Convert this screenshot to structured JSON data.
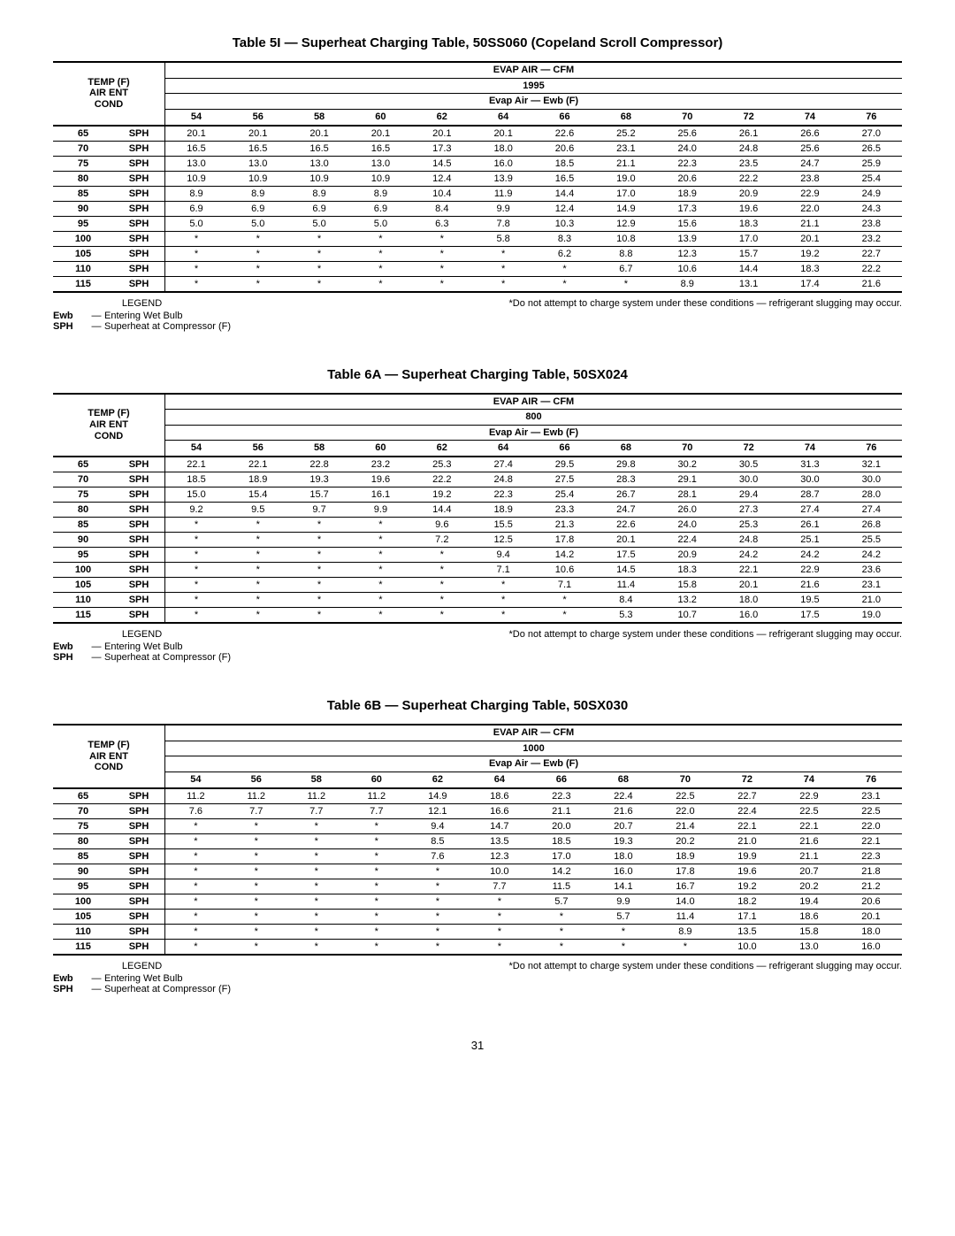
{
  "pageNumber": "31",
  "legend": {
    "title": "LEGEND",
    "items": [
      {
        "key": "Ewb",
        "desc": "Entering Wet Bulb"
      },
      {
        "key": "SPH",
        "desc": "Superheat at Compressor (F)"
      }
    ],
    "footnote": "*Do not attempt to charge system under these conditions — refrigerant slugging may occur."
  },
  "rowHeaderLines": [
    "TEMP (F)",
    "AIR ENT",
    "COND"
  ],
  "topHeader1": "EVAP AIR — CFM",
  "topHeader3": "Evap Air — Ewb (F)",
  "ewbCols": [
    "54",
    "56",
    "58",
    "60",
    "62",
    "64",
    "66",
    "68",
    "70",
    "72",
    "74",
    "76"
  ],
  "tables": [
    {
      "title": "Table 5I — Superheat Charging Table, 50SS060 (Copeland Scroll Compressor)",
      "cfm": "1995",
      "temps": [
        "65",
        "70",
        "75",
        "80",
        "85",
        "90",
        "95",
        "100",
        "105",
        "110",
        "115"
      ],
      "rows": [
        [
          "20.1",
          "20.1",
          "20.1",
          "20.1",
          "20.1",
          "20.1",
          "22.6",
          "25.2",
          "25.6",
          "26.1",
          "26.6",
          "27.0"
        ],
        [
          "16.5",
          "16.5",
          "16.5",
          "16.5",
          "17.3",
          "18.0",
          "20.6",
          "23.1",
          "24.0",
          "24.8",
          "25.6",
          "26.5"
        ],
        [
          "13.0",
          "13.0",
          "13.0",
          "13.0",
          "14.5",
          "16.0",
          "18.5",
          "21.1",
          "22.3",
          "23.5",
          "24.7",
          "25.9"
        ],
        [
          "10.9",
          "10.9",
          "10.9",
          "10.9",
          "12.4",
          "13.9",
          "16.5",
          "19.0",
          "20.6",
          "22.2",
          "23.8",
          "25.4"
        ],
        [
          "8.9",
          "8.9",
          "8.9",
          "8.9",
          "10.4",
          "11.9",
          "14.4",
          "17.0",
          "18.9",
          "20.9",
          "22.9",
          "24.9"
        ],
        [
          "6.9",
          "6.9",
          "6.9",
          "6.9",
          "8.4",
          "9.9",
          "12.4",
          "14.9",
          "17.3",
          "19.6",
          "22.0",
          "24.3"
        ],
        [
          "5.0",
          "5.0",
          "5.0",
          "5.0",
          "6.3",
          "7.8",
          "10.3",
          "12.9",
          "15.6",
          "18.3",
          "21.1",
          "23.8"
        ],
        [
          "*",
          "*",
          "*",
          "*",
          "*",
          "5.8",
          "8.3",
          "10.8",
          "13.9",
          "17.0",
          "20.1",
          "23.2"
        ],
        [
          "*",
          "*",
          "*",
          "*",
          "*",
          "*",
          "6.2",
          "8.8",
          "12.3",
          "15.7",
          "19.2",
          "22.7"
        ],
        [
          "*",
          "*",
          "*",
          "*",
          "*",
          "*",
          "*",
          "6.7",
          "10.6",
          "14.4",
          "18.3",
          "22.2"
        ],
        [
          "*",
          "*",
          "*",
          "*",
          "*",
          "*",
          "*",
          "*",
          "8.9",
          "13.1",
          "17.4",
          "21.6"
        ]
      ]
    },
    {
      "title": "Table 6A — Superheat Charging Table, 50SX024",
      "cfm": "800",
      "temps": [
        "65",
        "70",
        "75",
        "80",
        "85",
        "90",
        "95",
        "100",
        "105",
        "110",
        "115"
      ],
      "rows": [
        [
          "22.1",
          "22.1",
          "22.8",
          "23.2",
          "25.3",
          "27.4",
          "29.5",
          "29.8",
          "30.2",
          "30.5",
          "31.3",
          "32.1"
        ],
        [
          "18.5",
          "18.9",
          "19.3",
          "19.6",
          "22.2",
          "24.8",
          "27.5",
          "28.3",
          "29.1",
          "30.0",
          "30.0",
          "30.0"
        ],
        [
          "15.0",
          "15.4",
          "15.7",
          "16.1",
          "19.2",
          "22.3",
          "25.4",
          "26.7",
          "28.1",
          "29.4",
          "28.7",
          "28.0"
        ],
        [
          "9.2",
          "9.5",
          "9.7",
          "9.9",
          "14.4",
          "18.9",
          "23.3",
          "24.7",
          "26.0",
          "27.3",
          "27.4",
          "27.4"
        ],
        [
          "*",
          "*",
          "*",
          "*",
          "9.6",
          "15.5",
          "21.3",
          "22.6",
          "24.0",
          "25.3",
          "26.1",
          "26.8"
        ],
        [
          "*",
          "*",
          "*",
          "*",
          "7.2",
          "12.5",
          "17.8",
          "20.1",
          "22.4",
          "24.8",
          "25.1",
          "25.5"
        ],
        [
          "*",
          "*",
          "*",
          "*",
          "*",
          "9.4",
          "14.2",
          "17.5",
          "20.9",
          "24.2",
          "24.2",
          "24.2"
        ],
        [
          "*",
          "*",
          "*",
          "*",
          "*",
          "7.1",
          "10.6",
          "14.5",
          "18.3",
          "22.1",
          "22.9",
          "23.6"
        ],
        [
          "*",
          "*",
          "*",
          "*",
          "*",
          "*",
          "7.1",
          "11.4",
          "15.8",
          "20.1",
          "21.6",
          "23.1"
        ],
        [
          "*",
          "*",
          "*",
          "*",
          "*",
          "*",
          "*",
          "8.4",
          "13.2",
          "18.0",
          "19.5",
          "21.0"
        ],
        [
          "*",
          "*",
          "*",
          "*",
          "*",
          "*",
          "*",
          "5.3",
          "10.7",
          "16.0",
          "17.5",
          "19.0"
        ]
      ]
    },
    {
      "title": "Table 6B — Superheat Charging Table, 50SX030",
      "cfm": "1000",
      "temps": [
        "65",
        "70",
        "75",
        "80",
        "85",
        "90",
        "95",
        "100",
        "105",
        "110",
        "115"
      ],
      "rows": [
        [
          "11.2",
          "11.2",
          "11.2",
          "11.2",
          "14.9",
          "18.6",
          "22.3",
          "22.4",
          "22.5",
          "22.7",
          "22.9",
          "23.1"
        ],
        [
          "7.6",
          "7.7",
          "7.7",
          "7.7",
          "12.1",
          "16.6",
          "21.1",
          "21.6",
          "22.0",
          "22.4",
          "22.5",
          "22.5"
        ],
        [
          "*",
          "*",
          "*",
          "*",
          "9.4",
          "14.7",
          "20.0",
          "20.7",
          "21.4",
          "22.1",
          "22.1",
          "22.0"
        ],
        [
          "*",
          "*",
          "*",
          "*",
          "8.5",
          "13.5",
          "18.5",
          "19.3",
          "20.2",
          "21.0",
          "21.6",
          "22.1"
        ],
        [
          "*",
          "*",
          "*",
          "*",
          "7.6",
          "12.3",
          "17.0",
          "18.0",
          "18.9",
          "19.9",
          "21.1",
          "22.3"
        ],
        [
          "*",
          "*",
          "*",
          "*",
          "*",
          "10.0",
          "14.2",
          "16.0",
          "17.8",
          "19.6",
          "20.7",
          "21.8"
        ],
        [
          "*",
          "*",
          "*",
          "*",
          "*",
          "7.7",
          "11.5",
          "14.1",
          "16.7",
          "19.2",
          "20.2",
          "21.2"
        ],
        [
          "*",
          "*",
          "*",
          "*",
          "*",
          "*",
          "5.7",
          "9.9",
          "14.0",
          "18.2",
          "19.4",
          "20.6"
        ],
        [
          "*",
          "*",
          "*",
          "*",
          "*",
          "*",
          "*",
          "5.7",
          "11.4",
          "17.1",
          "18.6",
          "20.1"
        ],
        [
          "*",
          "*",
          "*",
          "*",
          "*",
          "*",
          "*",
          "*",
          "8.9",
          "13.5",
          "15.8",
          "18.0"
        ],
        [
          "*",
          "*",
          "*",
          "*",
          "*",
          "*",
          "*",
          "*",
          "*",
          "10.0",
          "13.0",
          "16.0"
        ]
      ]
    }
  ]
}
